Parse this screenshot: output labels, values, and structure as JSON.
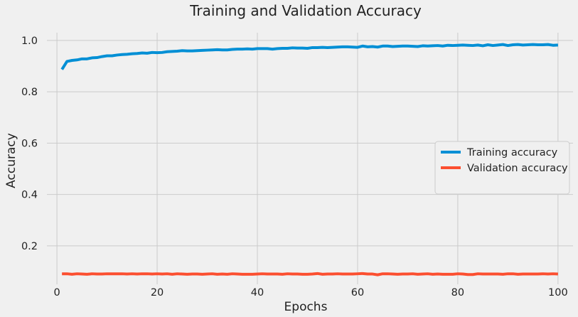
{
  "chart_data": {
    "type": "line",
    "title": "Training and Validation Accuracy",
    "xlabel": "Epochs",
    "ylabel": "Accuracy",
    "xlim": [
      -2,
      103
    ],
    "ylim": [
      0.05,
      1.03
    ],
    "xticks": [
      0,
      20,
      40,
      60,
      80,
      100
    ],
    "yticks": [
      0.2,
      0.4,
      0.6,
      0.8,
      1.0
    ],
    "ytick_labels": [
      "0.2",
      "0.4",
      "0.6",
      "0.8",
      "1.0"
    ],
    "grid": true,
    "legend_position": "center-right",
    "series": [
      {
        "name": "Training accuracy",
        "color": "#008fd5",
        "x": [
          1,
          2,
          3,
          4,
          5,
          6,
          7,
          8,
          9,
          10,
          11,
          12,
          13,
          14,
          15,
          16,
          17,
          18,
          19,
          20,
          21,
          22,
          23,
          24,
          25,
          26,
          27,
          28,
          29,
          30,
          31,
          32,
          33,
          34,
          35,
          36,
          37,
          38,
          39,
          40,
          41,
          42,
          43,
          44,
          45,
          46,
          47,
          48,
          49,
          50,
          51,
          52,
          53,
          54,
          55,
          56,
          57,
          58,
          59,
          60,
          61,
          62,
          63,
          64,
          65,
          66,
          67,
          68,
          69,
          70,
          71,
          72,
          73,
          74,
          75,
          76,
          77,
          78,
          79,
          80,
          81,
          82,
          83,
          84,
          85,
          86,
          87,
          88,
          89,
          90,
          91,
          92,
          93,
          94,
          95,
          96,
          97,
          98,
          99,
          100
        ],
        "values": [
          0.887,
          0.918,
          0.922,
          0.924,
          0.928,
          0.928,
          0.932,
          0.933,
          0.937,
          0.94,
          0.94,
          0.943,
          0.945,
          0.946,
          0.948,
          0.949,
          0.951,
          0.95,
          0.953,
          0.952,
          0.953,
          0.956,
          0.957,
          0.958,
          0.96,
          0.959,
          0.959,
          0.96,
          0.961,
          0.962,
          0.963,
          0.964,
          0.963,
          0.963,
          0.965,
          0.966,
          0.966,
          0.967,
          0.966,
          0.968,
          0.968,
          0.968,
          0.966,
          0.968,
          0.969,
          0.969,
          0.971,
          0.97,
          0.97,
          0.969,
          0.972,
          0.972,
          0.973,
          0.972,
          0.973,
          0.974,
          0.975,
          0.975,
          0.974,
          0.973,
          0.978,
          0.975,
          0.976,
          0.974,
          0.978,
          0.978,
          0.976,
          0.977,
          0.978,
          0.978,
          0.977,
          0.976,
          0.979,
          0.978,
          0.979,
          0.98,
          0.978,
          0.981,
          0.98,
          0.981,
          0.982,
          0.981,
          0.98,
          0.982,
          0.979,
          0.983,
          0.98,
          0.982,
          0.984,
          0.98,
          0.983,
          0.984,
          0.982,
          0.983,
          0.984,
          0.983,
          0.983,
          0.984,
          0.981,
          0.982
        ]
      },
      {
        "name": "Validation accuracy",
        "color": "#fc4f30",
        "x": [
          1,
          2,
          3,
          4,
          5,
          6,
          7,
          8,
          9,
          10,
          11,
          12,
          13,
          14,
          15,
          16,
          17,
          18,
          19,
          20,
          21,
          22,
          23,
          24,
          25,
          26,
          27,
          28,
          29,
          30,
          31,
          32,
          33,
          34,
          35,
          36,
          37,
          38,
          39,
          40,
          41,
          42,
          43,
          44,
          45,
          46,
          47,
          48,
          49,
          50,
          51,
          52,
          53,
          54,
          55,
          56,
          57,
          58,
          59,
          60,
          61,
          62,
          63,
          64,
          65,
          66,
          67,
          68,
          69,
          70,
          71,
          72,
          73,
          74,
          75,
          76,
          77,
          78,
          79,
          80,
          81,
          82,
          83,
          84,
          85,
          86,
          87,
          88,
          89,
          90,
          91,
          92,
          93,
          94,
          95,
          96,
          97,
          98,
          99,
          100
        ],
        "values": [
          0.091,
          0.091,
          0.089,
          0.091,
          0.09,
          0.089,
          0.091,
          0.09,
          0.09,
          0.091,
          0.091,
          0.091,
          0.091,
          0.09,
          0.091,
          0.09,
          0.091,
          0.091,
          0.09,
          0.091,
          0.09,
          0.091,
          0.089,
          0.091,
          0.09,
          0.089,
          0.09,
          0.09,
          0.089,
          0.09,
          0.091,
          0.089,
          0.09,
          0.089,
          0.091,
          0.09,
          0.089,
          0.089,
          0.089,
          0.09,
          0.091,
          0.09,
          0.09,
          0.09,
          0.089,
          0.091,
          0.09,
          0.09,
          0.089,
          0.089,
          0.09,
          0.092,
          0.089,
          0.09,
          0.09,
          0.091,
          0.09,
          0.09,
          0.09,
          0.091,
          0.092,
          0.09,
          0.09,
          0.087,
          0.091,
          0.091,
          0.09,
          0.089,
          0.09,
          0.09,
          0.091,
          0.089,
          0.09,
          0.091,
          0.089,
          0.09,
          0.089,
          0.089,
          0.089,
          0.091,
          0.09,
          0.088,
          0.088,
          0.091,
          0.09,
          0.09,
          0.09,
          0.09,
          0.089,
          0.091,
          0.091,
          0.089,
          0.09,
          0.09,
          0.09,
          0.09,
          0.091,
          0.09,
          0.091,
          0.09
        ]
      }
    ]
  }
}
